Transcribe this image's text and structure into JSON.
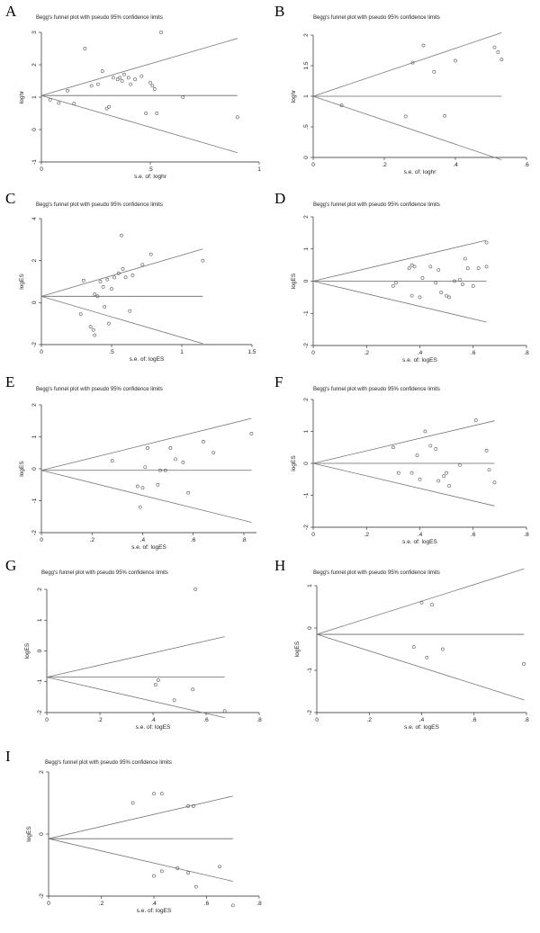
{
  "chart_data": [
    {
      "panel": "A",
      "type": "scatter",
      "title": "Begg's funnel plot with pseudo 95% confidence limits",
      "xlabel": "s.e. of: loghr",
      "ylabel": "loghr",
      "xlim": [
        0,
        1
      ],
      "ylim": [
        -1,
        3
      ],
      "xticks": [
        "0",
        ".5",
        "1"
      ],
      "yticks": [
        "-1",
        "0",
        "1",
        "2",
        "3"
      ],
      "xtick_values": [
        0,
        0.5,
        1
      ],
      "ytick_values": [
        -1,
        0,
        1,
        2,
        3
      ],
      "pooled": 1.05,
      "funnel_xmax": 0.9,
      "points": [
        [
          0.04,
          0.92
        ],
        [
          0.08,
          0.82
        ],
        [
          0.12,
          1.2
        ],
        [
          0.15,
          0.8
        ],
        [
          0.2,
          2.5
        ],
        [
          0.23,
          1.35
        ],
        [
          0.26,
          1.4
        ],
        [
          0.28,
          1.8
        ],
        [
          0.3,
          0.65
        ],
        [
          0.31,
          0.7
        ],
        [
          0.33,
          1.6
        ],
        [
          0.35,
          1.55
        ],
        [
          0.36,
          1.6
        ],
        [
          0.37,
          1.5
        ],
        [
          0.38,
          1.7
        ],
        [
          0.4,
          1.6
        ],
        [
          0.41,
          1.4
        ],
        [
          0.43,
          1.55
        ],
        [
          0.46,
          1.65
        ],
        [
          0.48,
          0.5
        ],
        [
          0.5,
          1.45
        ],
        [
          0.51,
          1.35
        ],
        [
          0.52,
          1.25
        ],
        [
          0.53,
          0.5
        ],
        [
          0.55,
          3.0
        ],
        [
          0.65,
          1.0
        ],
        [
          0.9,
          0.38
        ]
      ]
    },
    {
      "panel": "B",
      "type": "scatter",
      "title": "Begg's funnel plot with pseudo 95% confidence limits",
      "xlabel": "s.e. of: loghr",
      "ylabel": "loghr",
      "xlim": [
        0,
        0.6
      ],
      "ylim": [
        0,
        2
      ],
      "xticks": [
        "0",
        ".2",
        ".4",
        ".6"
      ],
      "yticks": [
        "0",
        ".5",
        "1",
        "1.5",
        "2"
      ],
      "xtick_values": [
        0,
        0.2,
        0.4,
        0.6
      ],
      "ytick_values": [
        0,
        0.5,
        1,
        1.5,
        2
      ],
      "pooled": 1.0,
      "funnel_xmax": 0.53,
      "points": [
        [
          0.08,
          0.85
        ],
        [
          0.26,
          0.67
        ],
        [
          0.28,
          1.55
        ],
        [
          0.31,
          1.83
        ],
        [
          0.34,
          1.4
        ],
        [
          0.37,
          0.68
        ],
        [
          0.4,
          1.58
        ],
        [
          0.51,
          1.8
        ],
        [
          0.52,
          1.72
        ],
        [
          0.53,
          1.6
        ]
      ]
    },
    {
      "panel": "C",
      "type": "scatter",
      "title": "Begg's funnel plot with pseudo 95% confidence limits",
      "xlabel": "s.e. of: logES",
      "ylabel": "logES",
      "xlim": [
        0,
        1.5
      ],
      "ylim": [
        -2,
        4
      ],
      "xticks": [
        "0",
        ".5",
        "1",
        "1.5"
      ],
      "yticks": [
        "-2",
        "0",
        "2",
        "4"
      ],
      "xtick_values": [
        0,
        0.5,
        1,
        1.5
      ],
      "ytick_values": [
        -2,
        0,
        2,
        4
      ],
      "pooled": 0.3,
      "funnel_xmax": 1.15,
      "points": [
        [
          0.28,
          -0.55
        ],
        [
          0.3,
          1.05
        ],
        [
          0.35,
          -1.15
        ],
        [
          0.37,
          -1.3
        ],
        [
          0.38,
          -1.55
        ],
        [
          0.38,
          0.4
        ],
        [
          0.4,
          0.3
        ],
        [
          0.42,
          1.0
        ],
        [
          0.44,
          0.75
        ],
        [
          0.45,
          -0.2
        ],
        [
          0.47,
          1.1
        ],
        [
          0.48,
          -1.0
        ],
        [
          0.5,
          0.65
        ],
        [
          0.52,
          1.2
        ],
        [
          0.55,
          1.4
        ],
        [
          0.57,
          3.2
        ],
        [
          0.58,
          1.6
        ],
        [
          0.6,
          1.2
        ],
        [
          0.63,
          -0.4
        ],
        [
          0.65,
          1.3
        ],
        [
          0.72,
          1.8
        ],
        [
          0.78,
          2.3
        ],
        [
          1.15,
          2.0
        ]
      ]
    },
    {
      "panel": "D",
      "type": "scatter",
      "title": "Begg's funnel plot with pseudo 95% confidence limits",
      "xlabel": "s.e. of: logES",
      "ylabel": "logES",
      "xlim": [
        0,
        0.8
      ],
      "ylim": [
        -2,
        2
      ],
      "xticks": [
        "0",
        ".2",
        ".4",
        ".6",
        ".8"
      ],
      "yticks": [
        "-2",
        "-1",
        "0",
        "1",
        "2"
      ],
      "xtick_values": [
        0,
        0.2,
        0.4,
        0.6,
        0.8
      ],
      "ytick_values": [
        -2,
        -1,
        0,
        1,
        2
      ],
      "pooled": 0.0,
      "funnel_xmax": 0.65,
      "points": [
        [
          0.3,
          -0.15
        ],
        [
          0.31,
          -0.05
        ],
        [
          0.36,
          0.4
        ],
        [
          0.37,
          0.5
        ],
        [
          0.37,
          -0.45
        ],
        [
          0.38,
          0.45
        ],
        [
          0.4,
          -0.5
        ],
        [
          0.41,
          0.1
        ],
        [
          0.44,
          0.45
        ],
        [
          0.46,
          -0.05
        ],
        [
          0.47,
          0.35
        ],
        [
          0.48,
          -0.35
        ],
        [
          0.5,
          -0.45
        ],
        [
          0.51,
          -0.5
        ],
        [
          0.53,
          0.0
        ],
        [
          0.55,
          0.05
        ],
        [
          0.56,
          -0.1
        ],
        [
          0.57,
          0.7
        ],
        [
          0.58,
          0.4
        ],
        [
          0.6,
          -0.15
        ],
        [
          0.62,
          0.4
        ],
        [
          0.65,
          0.45
        ],
        [
          0.65,
          1.2
        ]
      ]
    },
    {
      "panel": "E",
      "type": "scatter",
      "title": "Begg's funnel plot with pseudo 95% confidence limits",
      "xlabel": "s.e. of: logES",
      "ylabel": "logES",
      "xlim": [
        0,
        0.85
      ],
      "ylim": [
        -2,
        2
      ],
      "xticks": [
        "0",
        ".2",
        ".4",
        ".6",
        ".8"
      ],
      "yticks": [
        "-2",
        "-1",
        "0",
        "1",
        "2"
      ],
      "xtick_values": [
        0,
        0.2,
        0.4,
        0.6,
        0.8
      ],
      "ytick_values": [
        -2,
        -1,
        0,
        1,
        2
      ],
      "pooled": -0.05,
      "funnel_xmax": 0.83,
      "points": [
        [
          0.28,
          0.25
        ],
        [
          0.38,
          -0.55
        ],
        [
          0.39,
          -1.2
        ],
        [
          0.4,
          -0.6
        ],
        [
          0.41,
          0.05
        ],
        [
          0.42,
          0.65
        ],
        [
          0.46,
          -0.5
        ],
        [
          0.47,
          -0.05
        ],
        [
          0.49,
          -0.05
        ],
        [
          0.51,
          0.65
        ],
        [
          0.53,
          0.3
        ],
        [
          0.56,
          0.2
        ],
        [
          0.58,
          -0.75
        ],
        [
          0.64,
          0.85
        ],
        [
          0.68,
          0.5
        ],
        [
          0.83,
          1.1
        ]
      ]
    },
    {
      "panel": "F",
      "type": "scatter",
      "title": "Begg's funnel plot with pseudo 95% confidence limits",
      "xlabel": "s.e. of: logES",
      "ylabel": "logES",
      "xlim": [
        0,
        0.8
      ],
      "ylim": [
        -2,
        2
      ],
      "xticks": [
        "0",
        ".2",
        ".4",
        ".6",
        ".8"
      ],
      "yticks": [
        "-2",
        "-1",
        "0",
        "1",
        "2"
      ],
      "xtick_values": [
        0,
        0.2,
        0.4,
        0.6,
        0.8
      ],
      "ytick_values": [
        -2,
        -1,
        0,
        1,
        2
      ],
      "pooled": 0.0,
      "funnel_xmax": 0.68,
      "points": [
        [
          0.3,
          0.5
        ],
        [
          0.32,
          -0.3
        ],
        [
          0.37,
          -0.3
        ],
        [
          0.39,
          0.25
        ],
        [
          0.4,
          -0.5
        ],
        [
          0.42,
          1.0
        ],
        [
          0.44,
          0.55
        ],
        [
          0.46,
          0.45
        ],
        [
          0.47,
          -0.55
        ],
        [
          0.49,
          -0.4
        ],
        [
          0.5,
          -0.3
        ],
        [
          0.51,
          -0.7
        ],
        [
          0.55,
          -0.05
        ],
        [
          0.61,
          1.35
        ],
        [
          0.65,
          0.4
        ],
        [
          0.66,
          -0.2
        ],
        [
          0.68,
          -0.6
        ]
      ]
    },
    {
      "panel": "G",
      "type": "scatter",
      "title": "Begg's funnel plot with pseudo 95% confidence limits",
      "xlabel": "s.e. of: logES",
      "ylabel": "logES",
      "xlim": [
        0,
        0.8
      ],
      "ylim": [
        -2,
        2
      ],
      "xticks": [
        "0",
        ".2",
        ".4",
        ".6",
        ".8"
      ],
      "yticks": [
        "-2",
        "-1",
        "0",
        "1",
        "2"
      ],
      "xtick_values": [
        0,
        0.2,
        0.4,
        0.6,
        0.8
      ],
      "ytick_values": [
        -2,
        -1,
        0,
        1,
        2
      ],
      "pooled": -0.85,
      "funnel_xmax": 0.67,
      "points": [
        [
          0.41,
          -1.1
        ],
        [
          0.42,
          -0.95
        ],
        [
          0.48,
          -1.6
        ],
        [
          0.55,
          -1.25
        ],
        [
          0.56,
          2.0
        ],
        [
          0.67,
          -1.95
        ]
      ]
    },
    {
      "panel": "H",
      "type": "scatter",
      "title": "Begg's funnel plot with pseudo 95% confidence limits",
      "xlabel": "s.e. of: logES",
      "ylabel": "logES",
      "xlim": [
        0,
        0.8
      ],
      "ylim": [
        -2,
        1
      ],
      "xticks": [
        "0",
        ".2",
        ".4",
        ".6",
        ".8"
      ],
      "yticks": [
        "-2",
        "-1",
        "0",
        "1"
      ],
      "xtick_values": [
        0,
        0.2,
        0.4,
        0.6,
        0.8
      ],
      "ytick_values": [
        -2,
        -1,
        0,
        1
      ],
      "pooled": -0.15,
      "funnel_xmax": 0.79,
      "points": [
        [
          0.4,
          0.6
        ],
        [
          0.44,
          0.55
        ],
        [
          0.37,
          -0.45
        ],
        [
          0.42,
          -0.7
        ],
        [
          0.48,
          -0.5
        ],
        [
          0.79,
          -0.85
        ]
      ]
    },
    {
      "panel": "I",
      "type": "scatter",
      "title": "Begg's funnel plot with pseudo 95% confidence limits",
      "xlabel": "s.e. of: logES",
      "ylabel": "logES",
      "xlim": [
        0,
        0.8
      ],
      "ylim": [
        -2,
        2
      ],
      "xticks": [
        "0",
        ".2",
        ".4",
        ".6",
        ".8"
      ],
      "yticks": [
        "-2",
        "0",
        "2"
      ],
      "xtick_values": [
        0,
        0.2,
        0.4,
        0.6,
        0.8
      ],
      "ytick_values": [
        -2,
        0,
        2
      ],
      "pooled": -0.15,
      "funnel_xmax": 0.7,
      "points": [
        [
          0.32,
          1.0
        ],
        [
          0.4,
          1.3
        ],
        [
          0.43,
          1.3
        ],
        [
          0.4,
          -1.35
        ],
        [
          0.43,
          -1.2
        ],
        [
          0.49,
          -1.1
        ],
        [
          0.53,
          0.9
        ],
        [
          0.55,
          0.9
        ],
        [
          0.53,
          -1.25
        ],
        [
          0.56,
          -1.7
        ],
        [
          0.65,
          -1.05
        ],
        [
          0.7,
          -2.3
        ]
      ]
    }
  ]
}
